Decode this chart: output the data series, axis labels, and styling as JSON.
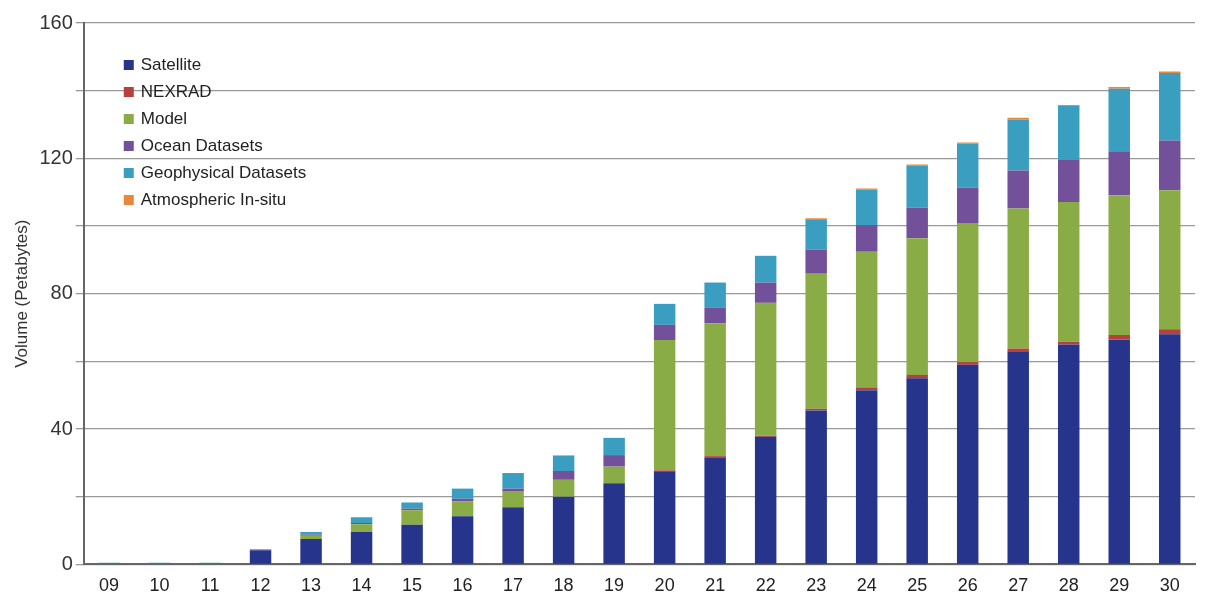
{
  "chart_data": {
    "type": "bar",
    "stacked": true,
    "ylabel": "Volume (Petabytes)",
    "categories": [
      "09",
      "10",
      "11",
      "12",
      "13",
      "14",
      "15",
      "16",
      "17",
      "18",
      "19",
      "20",
      "21",
      "22",
      "23",
      "24",
      "25",
      "26",
      "27",
      "28",
      "29",
      "30"
    ],
    "series": [
      {
        "name": "Satellite",
        "color": "#27348b",
        "values": [
          0.3,
          0.3,
          0.3,
          4.2,
          7.5,
          9.6,
          11.7,
          14.2,
          16.9,
          20,
          24,
          27.5,
          31.7,
          37.7,
          45.5,
          51.5,
          55,
          59,
          63,
          65,
          66.5,
          68
        ]
      },
      {
        "name": "NEXRAD",
        "color": "#b5413a",
        "values": [
          0,
          0,
          0,
          0,
          0,
          0,
          0,
          0,
          0,
          0,
          0,
          0.3,
          0.3,
          0.3,
          0.5,
          0.8,
          1,
          0.8,
          0.8,
          0.8,
          1.3,
          1.5
        ]
      },
      {
        "name": "Model",
        "color": "#8aac46",
        "values": [
          0,
          0,
          0,
          0,
          1,
          2.3,
          4.3,
          4.4,
          4.6,
          5,
          4.9,
          38.5,
          39.2,
          39.3,
          39.9,
          40.1,
          40.4,
          41.1,
          41.4,
          41.3,
          41.3,
          41.1
        ]
      },
      {
        "name": "Ocean Datasets",
        "color": "#72509a",
        "values": [
          0,
          0,
          0,
          0,
          0.3,
          0.3,
          0.5,
          0.8,
          0.9,
          2.6,
          3.4,
          4.5,
          4.6,
          6,
          7.1,
          7.9,
          9.1,
          10.4,
          11.2,
          12.4,
          13,
          14.7
        ]
      },
      {
        "name": "Geophysical Datasets",
        "color": "#3a9ec0",
        "values": [
          0.2,
          0.2,
          0.2,
          0.3,
          0.8,
          1.7,
          1.8,
          3,
          4.6,
          4.6,
          5.1,
          6.2,
          7.5,
          7.9,
          9,
          10.5,
          12.4,
          13.1,
          15.1,
          16,
          18.5,
          19.9
        ]
      },
      {
        "name": "Atmospheric In-situ",
        "color": "#e8883a",
        "values": [
          0,
          0,
          0,
          0,
          0,
          0,
          0,
          0,
          0,
          0,
          0,
          0,
          0,
          0,
          0.3,
          0.3,
          0.3,
          0.3,
          0.5,
          0.3,
          0.5,
          0.5
        ]
      }
    ],
    "ylim": [
      0,
      160
    ],
    "yticks": [
      0,
      {
        "value": 20,
        "label": null
      },
      40,
      {
        "value": 60,
        "label": null
      },
      80,
      {
        "value": 100,
        "label": null
      },
      120,
      {
        "value": 140,
        "label": null
      },
      160
    ],
    "grid": "y",
    "legend": "top left"
  }
}
